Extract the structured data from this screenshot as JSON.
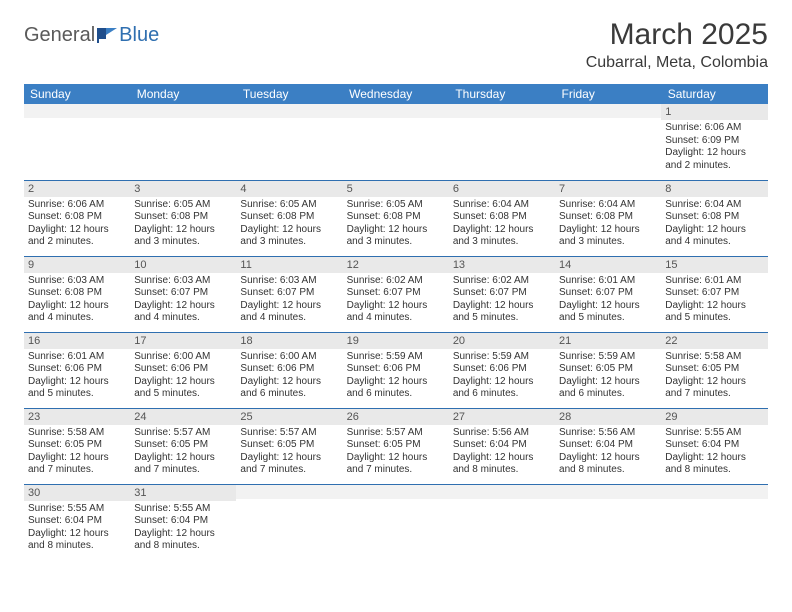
{
  "logo": {
    "part1": "General",
    "part2": "Blue"
  },
  "title": "March 2025",
  "location": "Cubarral, Meta, Colombia",
  "colors": {
    "header_bg": "#3b7fc4",
    "header_text": "#ffffff",
    "daynum_bg": "#e9e9e9",
    "row_border": "#2f6fb0",
    "logo_gray": "#5a5a5a",
    "logo_blue": "#2f6fb0"
  },
  "weekdays": [
    "Sunday",
    "Monday",
    "Tuesday",
    "Wednesday",
    "Thursday",
    "Friday",
    "Saturday"
  ],
  "weeks": [
    [
      {
        "n": "",
        "lines": []
      },
      {
        "n": "",
        "lines": []
      },
      {
        "n": "",
        "lines": []
      },
      {
        "n": "",
        "lines": []
      },
      {
        "n": "",
        "lines": []
      },
      {
        "n": "",
        "lines": []
      },
      {
        "n": "1",
        "lines": [
          "Sunrise: 6:06 AM",
          "Sunset: 6:09 PM",
          "Daylight: 12 hours",
          "and 2 minutes."
        ]
      }
    ],
    [
      {
        "n": "2",
        "lines": [
          "Sunrise: 6:06 AM",
          "Sunset: 6:08 PM",
          "Daylight: 12 hours",
          "and 2 minutes."
        ]
      },
      {
        "n": "3",
        "lines": [
          "Sunrise: 6:05 AM",
          "Sunset: 6:08 PM",
          "Daylight: 12 hours",
          "and 3 minutes."
        ]
      },
      {
        "n": "4",
        "lines": [
          "Sunrise: 6:05 AM",
          "Sunset: 6:08 PM",
          "Daylight: 12 hours",
          "and 3 minutes."
        ]
      },
      {
        "n": "5",
        "lines": [
          "Sunrise: 6:05 AM",
          "Sunset: 6:08 PM",
          "Daylight: 12 hours",
          "and 3 minutes."
        ]
      },
      {
        "n": "6",
        "lines": [
          "Sunrise: 6:04 AM",
          "Sunset: 6:08 PM",
          "Daylight: 12 hours",
          "and 3 minutes."
        ]
      },
      {
        "n": "7",
        "lines": [
          "Sunrise: 6:04 AM",
          "Sunset: 6:08 PM",
          "Daylight: 12 hours",
          "and 3 minutes."
        ]
      },
      {
        "n": "8",
        "lines": [
          "Sunrise: 6:04 AM",
          "Sunset: 6:08 PM",
          "Daylight: 12 hours",
          "and 4 minutes."
        ]
      }
    ],
    [
      {
        "n": "9",
        "lines": [
          "Sunrise: 6:03 AM",
          "Sunset: 6:08 PM",
          "Daylight: 12 hours",
          "and 4 minutes."
        ]
      },
      {
        "n": "10",
        "lines": [
          "Sunrise: 6:03 AM",
          "Sunset: 6:07 PM",
          "Daylight: 12 hours",
          "and 4 minutes."
        ]
      },
      {
        "n": "11",
        "lines": [
          "Sunrise: 6:03 AM",
          "Sunset: 6:07 PM",
          "Daylight: 12 hours",
          "and 4 minutes."
        ]
      },
      {
        "n": "12",
        "lines": [
          "Sunrise: 6:02 AM",
          "Sunset: 6:07 PM",
          "Daylight: 12 hours",
          "and 4 minutes."
        ]
      },
      {
        "n": "13",
        "lines": [
          "Sunrise: 6:02 AM",
          "Sunset: 6:07 PM",
          "Daylight: 12 hours",
          "and 5 minutes."
        ]
      },
      {
        "n": "14",
        "lines": [
          "Sunrise: 6:01 AM",
          "Sunset: 6:07 PM",
          "Daylight: 12 hours",
          "and 5 minutes."
        ]
      },
      {
        "n": "15",
        "lines": [
          "Sunrise: 6:01 AM",
          "Sunset: 6:07 PM",
          "Daylight: 12 hours",
          "and 5 minutes."
        ]
      }
    ],
    [
      {
        "n": "16",
        "lines": [
          "Sunrise: 6:01 AM",
          "Sunset: 6:06 PM",
          "Daylight: 12 hours",
          "and 5 minutes."
        ]
      },
      {
        "n": "17",
        "lines": [
          "Sunrise: 6:00 AM",
          "Sunset: 6:06 PM",
          "Daylight: 12 hours",
          "and 5 minutes."
        ]
      },
      {
        "n": "18",
        "lines": [
          "Sunrise: 6:00 AM",
          "Sunset: 6:06 PM",
          "Daylight: 12 hours",
          "and 6 minutes."
        ]
      },
      {
        "n": "19",
        "lines": [
          "Sunrise: 5:59 AM",
          "Sunset: 6:06 PM",
          "Daylight: 12 hours",
          "and 6 minutes."
        ]
      },
      {
        "n": "20",
        "lines": [
          "Sunrise: 5:59 AM",
          "Sunset: 6:06 PM",
          "Daylight: 12 hours",
          "and 6 minutes."
        ]
      },
      {
        "n": "21",
        "lines": [
          "Sunrise: 5:59 AM",
          "Sunset: 6:05 PM",
          "Daylight: 12 hours",
          "and 6 minutes."
        ]
      },
      {
        "n": "22",
        "lines": [
          "Sunrise: 5:58 AM",
          "Sunset: 6:05 PM",
          "Daylight: 12 hours",
          "and 7 minutes."
        ]
      }
    ],
    [
      {
        "n": "23",
        "lines": [
          "Sunrise: 5:58 AM",
          "Sunset: 6:05 PM",
          "Daylight: 12 hours",
          "and 7 minutes."
        ]
      },
      {
        "n": "24",
        "lines": [
          "Sunrise: 5:57 AM",
          "Sunset: 6:05 PM",
          "Daylight: 12 hours",
          "and 7 minutes."
        ]
      },
      {
        "n": "25",
        "lines": [
          "Sunrise: 5:57 AM",
          "Sunset: 6:05 PM",
          "Daylight: 12 hours",
          "and 7 minutes."
        ]
      },
      {
        "n": "26",
        "lines": [
          "Sunrise: 5:57 AM",
          "Sunset: 6:05 PM",
          "Daylight: 12 hours",
          "and 7 minutes."
        ]
      },
      {
        "n": "27",
        "lines": [
          "Sunrise: 5:56 AM",
          "Sunset: 6:04 PM",
          "Daylight: 12 hours",
          "and 8 minutes."
        ]
      },
      {
        "n": "28",
        "lines": [
          "Sunrise: 5:56 AM",
          "Sunset: 6:04 PM",
          "Daylight: 12 hours",
          "and 8 minutes."
        ]
      },
      {
        "n": "29",
        "lines": [
          "Sunrise: 5:55 AM",
          "Sunset: 6:04 PM",
          "Daylight: 12 hours",
          "and 8 minutes."
        ]
      }
    ],
    [
      {
        "n": "30",
        "lines": [
          "Sunrise: 5:55 AM",
          "Sunset: 6:04 PM",
          "Daylight: 12 hours",
          "and 8 minutes."
        ]
      },
      {
        "n": "31",
        "lines": [
          "Sunrise: 5:55 AM",
          "Sunset: 6:04 PM",
          "Daylight: 12 hours",
          "and 8 minutes."
        ]
      },
      {
        "n": "",
        "lines": []
      },
      {
        "n": "",
        "lines": []
      },
      {
        "n": "",
        "lines": []
      },
      {
        "n": "",
        "lines": []
      },
      {
        "n": "",
        "lines": []
      }
    ]
  ]
}
